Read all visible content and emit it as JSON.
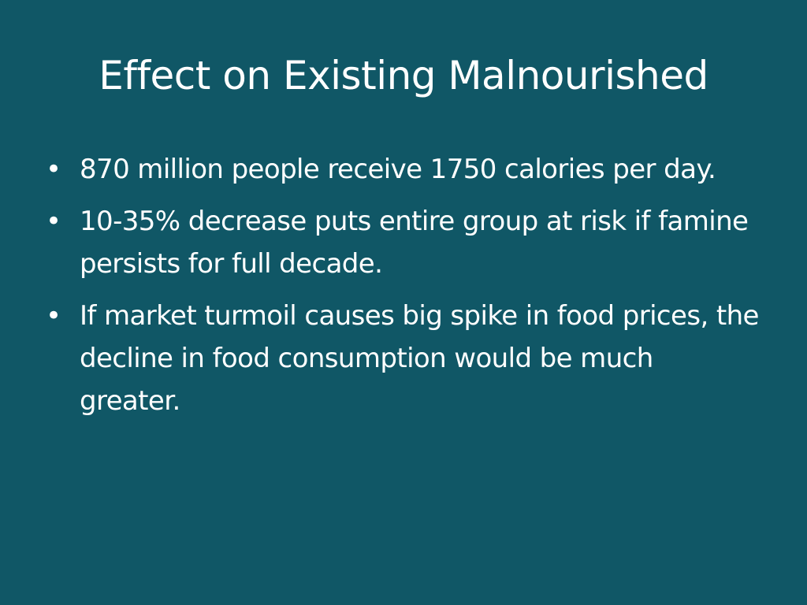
{
  "title": "Effect on Existing Malnourished",
  "bullets": [
    "870 million people receive 1750 calories per day.",
    "10-35% decrease puts entire group at risk if famine persists for full decade.",
    "If market turmoil causes big spike in food prices, the decline in food consumption would be much greater."
  ]
}
